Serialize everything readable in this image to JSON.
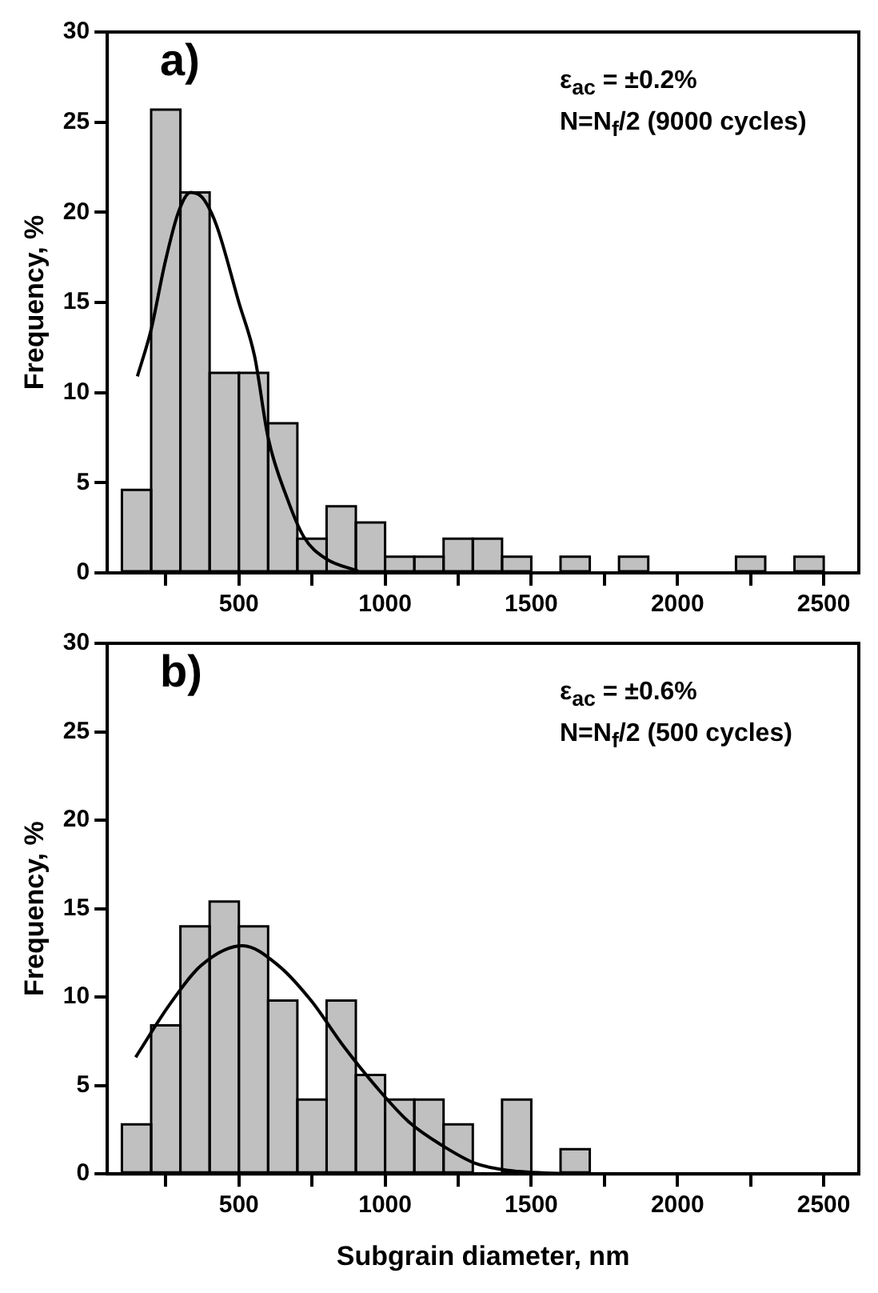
{
  "chart_data": [
    {
      "type": "histogram",
      "ylabel": "Frequency, %",
      "annotations": [
        "a)",
        "ε$_{ac}$ = ±0.2%",
        "N=N$_{f}$/2 (9000 cycles)"
      ],
      "xlim": [
        50,
        2620
      ],
      "ylim": [
        0,
        30
      ],
      "xticks": [
        {
          "value": 250,
          "label": null
        },
        500,
        {
          "value": 750,
          "label": null
        },
        1000,
        {
          "value": 1250,
          "label": null
        },
        1500,
        {
          "value": 1750,
          "label": null
        },
        2000,
        {
          "value": 2250,
          "label": null
        },
        2500
      ],
      "yticks": [
        0,
        5,
        10,
        15,
        20,
        25,
        30
      ],
      "grid": false,
      "legend": false,
      "series": [
        {
          "color": "#c0c0c0",
          "bins": [
            100,
            200,
            300,
            400,
            500,
            600,
            700,
            800,
            900,
            1000,
            1100,
            1200,
            1300,
            1400,
            1500,
            1600,
            1700,
            1800,
            1900,
            2000,
            2100,
            2200,
            2300,
            2400,
            2500
          ],
          "values": [
            4.6,
            25.7,
            21.1,
            11.1,
            11.1,
            8.3,
            1.9,
            3.7,
            2.8,
            0.9,
            0.9,
            1.9,
            1.9,
            0.9,
            0,
            0.9,
            0,
            0.9,
            0,
            0,
            0,
            0.9,
            0,
            0.9
          ]
        },
        {
          "type": "line",
          "color": "#000000",
          "x": [
            153,
            200,
            246,
            293,
            335,
            376,
            423,
            500,
            554,
            600,
            666,
            722,
            796,
            908
          ],
          "values": [
            10.9,
            13.5,
            17.1,
            20.0,
            21.1,
            20.8,
            19.3,
            15.0,
            12.0,
            7.5,
            4.1,
            2.0,
            0.8,
            0.1
          ]
        }
      ]
    },
    {
      "type": "histogram",
      "xlabel": "Subgrain diameter, nm",
      "ylabel": "Frequency, %",
      "annotations": [
        "b)",
        "ε$_{ac}$ = ±0.6%",
        "N=N$_{f}$/2 (500 cycles)"
      ],
      "xlim": [
        50,
        2620
      ],
      "ylim": [
        0,
        30
      ],
      "xticks": [
        {
          "value": 250,
          "label": null
        },
        500,
        {
          "value": 750,
          "label": null
        },
        1000,
        {
          "value": 1250,
          "label": null
        },
        1500,
        {
          "value": 1750,
          "label": null
        },
        2000,
        {
          "value": 2250,
          "label": null
        },
        2500
      ],
      "yticks": [
        0,
        5,
        10,
        15,
        20,
        25,
        30
      ],
      "grid": false,
      "legend": false,
      "series": [
        {
          "color": "#c0c0c0",
          "bins": [
            100,
            200,
            300,
            400,
            500,
            600,
            700,
            800,
            900,
            1000,
            1100,
            1200,
            1300,
            1400,
            1500,
            1600,
            1700
          ],
          "values": [
            2.8,
            8.4,
            14.0,
            15.4,
            14.0,
            9.8,
            4.2,
            9.8,
            5.6,
            4.2,
            4.2,
            2.8,
            0,
            4.2,
            0,
            1.4
          ]
        },
        {
          "type": "line",
          "color": "#000000",
          "x": [
            147,
            260,
            372,
            513,
            634,
            747,
            859,
            971,
            1084,
            1196,
            1308,
            1421,
            1646
          ],
          "values": [
            6.6,
            9.5,
            11.8,
            12.9,
            11.8,
            9.8,
            7.2,
            4.9,
            2.9,
            1.6,
            0.6,
            0.2,
            0.0
          ]
        }
      ]
    }
  ]
}
